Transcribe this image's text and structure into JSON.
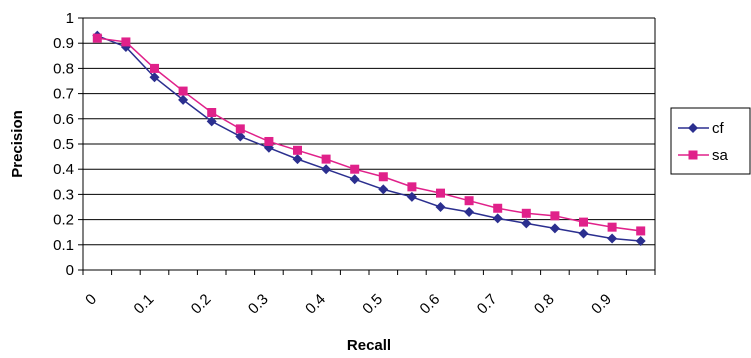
{
  "chart_data": {
    "type": "line",
    "title": "",
    "xlabel": "Recall",
    "ylabel": "Precision",
    "ylim": [
      0,
      1
    ],
    "yticks": [
      "0",
      "0.1",
      "0.2",
      "0.3",
      "0.4",
      "0.5",
      "0.6",
      "0.7",
      "0.8",
      "0.9",
      "1"
    ],
    "xticks": [
      "0",
      "0.1",
      "0.2",
      "0.3",
      "0.4",
      "0.5",
      "0.6",
      "0.7",
      "0.8",
      "0.9"
    ],
    "grid": "horizontal",
    "legend_position": "right",
    "x": [
      0.025,
      0.075,
      0.125,
      0.175,
      0.225,
      0.275,
      0.325,
      0.375,
      0.425,
      0.475,
      0.525,
      0.575,
      0.625,
      0.675,
      0.725,
      0.775,
      0.825,
      0.875,
      0.925,
      0.975
    ],
    "series": [
      {
        "name": "cf",
        "color": "#2b2f8f",
        "marker": "diamond",
        "values": [
          0.93,
          0.885,
          0.765,
          0.675,
          0.59,
          0.53,
          0.485,
          0.44,
          0.4,
          0.36,
          0.32,
          0.29,
          0.25,
          0.23,
          0.205,
          0.185,
          0.165,
          0.145,
          0.125,
          0.115
        ]
      },
      {
        "name": "sa",
        "color": "#e0218a",
        "marker": "square",
        "values": [
          0.92,
          0.905,
          0.8,
          0.71,
          0.625,
          0.56,
          0.51,
          0.475,
          0.44,
          0.4,
          0.37,
          0.33,
          0.305,
          0.275,
          0.245,
          0.225,
          0.215,
          0.19,
          0.17,
          0.155
        ]
      }
    ]
  }
}
